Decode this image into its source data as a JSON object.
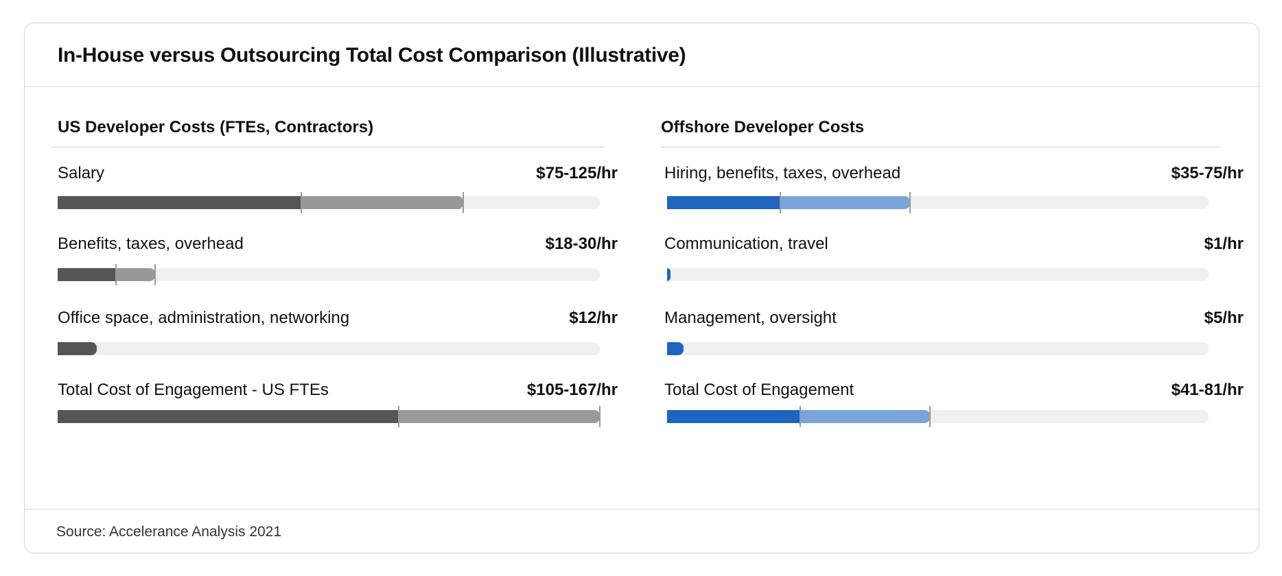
{
  "title": "In-House versus Outsourcing Total Cost Comparison (Illustrative)",
  "source": "Source: Accelerance Analysis 2021",
  "colors": {
    "us_low": "#555555",
    "us_high": "#999999",
    "off_low": "#1f64c0",
    "off_high": "#79a5da",
    "track": "#f0f0f0"
  },
  "chart_data": [
    {
      "type": "bar",
      "title": "US Developer Costs (FTEs, Contractors)",
      "unit": "$/hr",
      "rows": [
        {
          "label": "Salary",
          "value_label": "$75-125/hr",
          "low": 75,
          "high": 125
        },
        {
          "label": "Benefits, taxes, overhead",
          "value_label": "$18-30/hr",
          "low": 18,
          "high": 30
        },
        {
          "label": "Office space, administration, networking",
          "value_label": "$12/hr",
          "low": 12,
          "high": 12
        },
        {
          "label": "Total Cost of Engagement - US FTEs",
          "value_label": "$105-167/hr",
          "low": 105,
          "high": 167
        }
      ]
    },
    {
      "type": "bar",
      "title": "Offshore Developer Costs",
      "unit": "$/hr",
      "rows": [
        {
          "label": "Hiring, benefits, taxes, overhead",
          "value_label": "$35-75/hr",
          "low": 35,
          "high": 75
        },
        {
          "label": "Communication, travel",
          "value_label": "$1/hr",
          "low": 1,
          "high": 1
        },
        {
          "label": "Management, oversight",
          "value_label": "$5/hr",
          "low": 5,
          "high": 5
        },
        {
          "label": "Total Cost of Engagement",
          "value_label": "$41-81/hr",
          "low": 41,
          "high": 81
        }
      ]
    }
  ]
}
